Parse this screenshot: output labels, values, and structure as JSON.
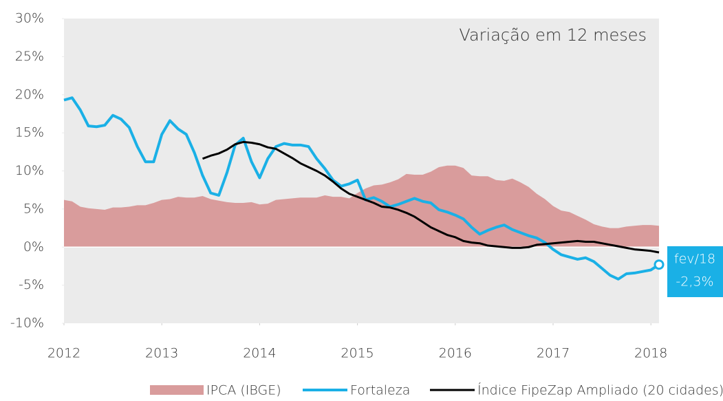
{
  "chart_data": {
    "type": "line",
    "title": "Variação em 12 meses",
    "x": [
      2012,
      2012.083,
      2012.167,
      2012.25,
      2012.333,
      2012.417,
      2012.5,
      2012.583,
      2012.667,
      2012.75,
      2012.833,
      2012.917,
      2013,
      2013.083,
      2013.167,
      2013.25,
      2013.333,
      2013.417,
      2013.5,
      2013.583,
      2013.667,
      2013.75,
      2013.833,
      2013.917,
      2014,
      2014.083,
      2014.167,
      2014.25,
      2014.333,
      2014.417,
      2014.5,
      2014.583,
      2014.667,
      2014.75,
      2014.833,
      2014.917,
      2015,
      2015.083,
      2015.167,
      2015.25,
      2015.333,
      2015.417,
      2015.5,
      2015.583,
      2015.667,
      2015.75,
      2015.833,
      2015.917,
      2016,
      2016.083,
      2016.167,
      2016.25,
      2016.333,
      2016.417,
      2016.5,
      2016.583,
      2016.667,
      2016.75,
      2016.833,
      2016.917,
      2017,
      2017.083,
      2017.167,
      2017.25,
      2017.333,
      2017.417,
      2017.5,
      2017.583,
      2017.667,
      2017.75,
      2017.833,
      2017.917,
      2018,
      2018.083
    ],
    "series": [
      {
        "name": "IPCA (IBGE)",
        "style": "area",
        "color": "#d99c9c",
        "values": [
          6.2,
          6.0,
          5.3,
          5.1,
          5.0,
          4.9,
          5.2,
          5.2,
          5.3,
          5.5,
          5.5,
          5.8,
          6.2,
          6.3,
          6.6,
          6.5,
          6.5,
          6.7,
          6.3,
          6.1,
          5.9,
          5.8,
          5.8,
          5.9,
          5.6,
          5.7,
          6.2,
          6.3,
          6.4,
          6.5,
          6.5,
          6.5,
          6.8,
          6.6,
          6.6,
          6.4,
          7.1,
          7.7,
          8.1,
          8.2,
          8.5,
          8.9,
          9.6,
          9.5,
          9.5,
          9.9,
          10.5,
          10.7,
          10.7,
          10.4,
          9.4,
          9.3,
          9.3,
          8.8,
          8.7,
          9.0,
          8.5,
          7.9,
          7.0,
          6.3,
          5.4,
          4.8,
          4.6,
          4.1,
          3.6,
          3.0,
          2.7,
          2.5,
          2.5,
          2.7,
          2.8,
          2.9,
          2.9,
          2.8
        ]
      },
      {
        "name": "Fortaleza",
        "style": "line",
        "color": "#1ab0e6",
        "values": [
          19.3,
          19.6,
          18.0,
          15.9,
          15.8,
          16.0,
          17.3,
          16.8,
          15.7,
          13.2,
          11.2,
          11.2,
          14.8,
          16.6,
          15.5,
          14.8,
          12.4,
          9.4,
          7.1,
          6.8,
          9.8,
          13.4,
          14.3,
          11.2,
          9.1,
          11.6,
          13.2,
          13.6,
          13.4,
          13.4,
          13.2,
          11.6,
          10.3,
          8.8,
          8.0,
          8.3,
          8.8,
          6.2,
          6.5,
          6.0,
          5.3,
          5.6,
          6.0,
          6.4,
          6.0,
          5.8,
          4.9,
          4.6,
          4.2,
          3.7,
          2.6,
          1.7,
          2.2,
          2.6,
          2.9,
          2.3,
          1.9,
          1.5,
          1.2,
          0.6,
          -0.3,
          -1.0,
          -1.3,
          -1.6,
          -1.4,
          -1.9,
          -2.8,
          -3.7,
          -4.2,
          -3.5,
          -3.4,
          -3.2,
          -3.0,
          -2.3
        ]
      },
      {
        "name": "Índice FipeZap Ampliado (20 cidades)",
        "style": "line",
        "color": "#000000",
        "values": [
          null,
          null,
          null,
          null,
          null,
          null,
          null,
          null,
          null,
          null,
          null,
          null,
          null,
          null,
          null,
          null,
          null,
          11.6,
          12.0,
          12.3,
          12.8,
          13.5,
          13.8,
          13.7,
          13.5,
          13.1,
          12.9,
          12.3,
          11.7,
          11.0,
          10.5,
          10.0,
          9.4,
          8.6,
          7.7,
          7.0,
          6.6,
          6.2,
          5.8,
          5.3,
          5.2,
          4.9,
          4.5,
          4.0,
          3.3,
          2.6,
          2.1,
          1.6,
          1.3,
          0.8,
          0.6,
          0.5,
          0.2,
          0.1,
          0.0,
          -0.1,
          -0.1,
          0.0,
          0.3,
          0.4,
          0.5,
          0.6,
          0.7,
          0.8,
          0.7,
          0.7,
          0.5,
          0.3,
          0.1,
          -0.1,
          -0.3,
          -0.4,
          -0.5,
          -0.7
        ]
      }
    ],
    "annotation": {
      "label": "fev/18",
      "value_label": "-2,3%"
    },
    "xlim": [
      2012,
      2018.083
    ],
    "xticks": [
      2012,
      2013,
      2014,
      2015,
      2016,
      2017,
      2018
    ],
    "ylim": [
      -10,
      30
    ],
    "yticks": [
      {
        "value": -10,
        "label": "-10%"
      },
      {
        "value": -5,
        "label": "-5%"
      },
      {
        "value": 0,
        "label": "0%"
      },
      {
        "value": 5,
        "label": "5%"
      },
      {
        "value": 10,
        "label": "10%"
      },
      {
        "value": 15,
        "label": "15%"
      },
      {
        "value": 20,
        "label": "20%"
      },
      {
        "value": 25,
        "label": "25%"
      },
      {
        "value": 30,
        "label": "30%"
      }
    ]
  }
}
